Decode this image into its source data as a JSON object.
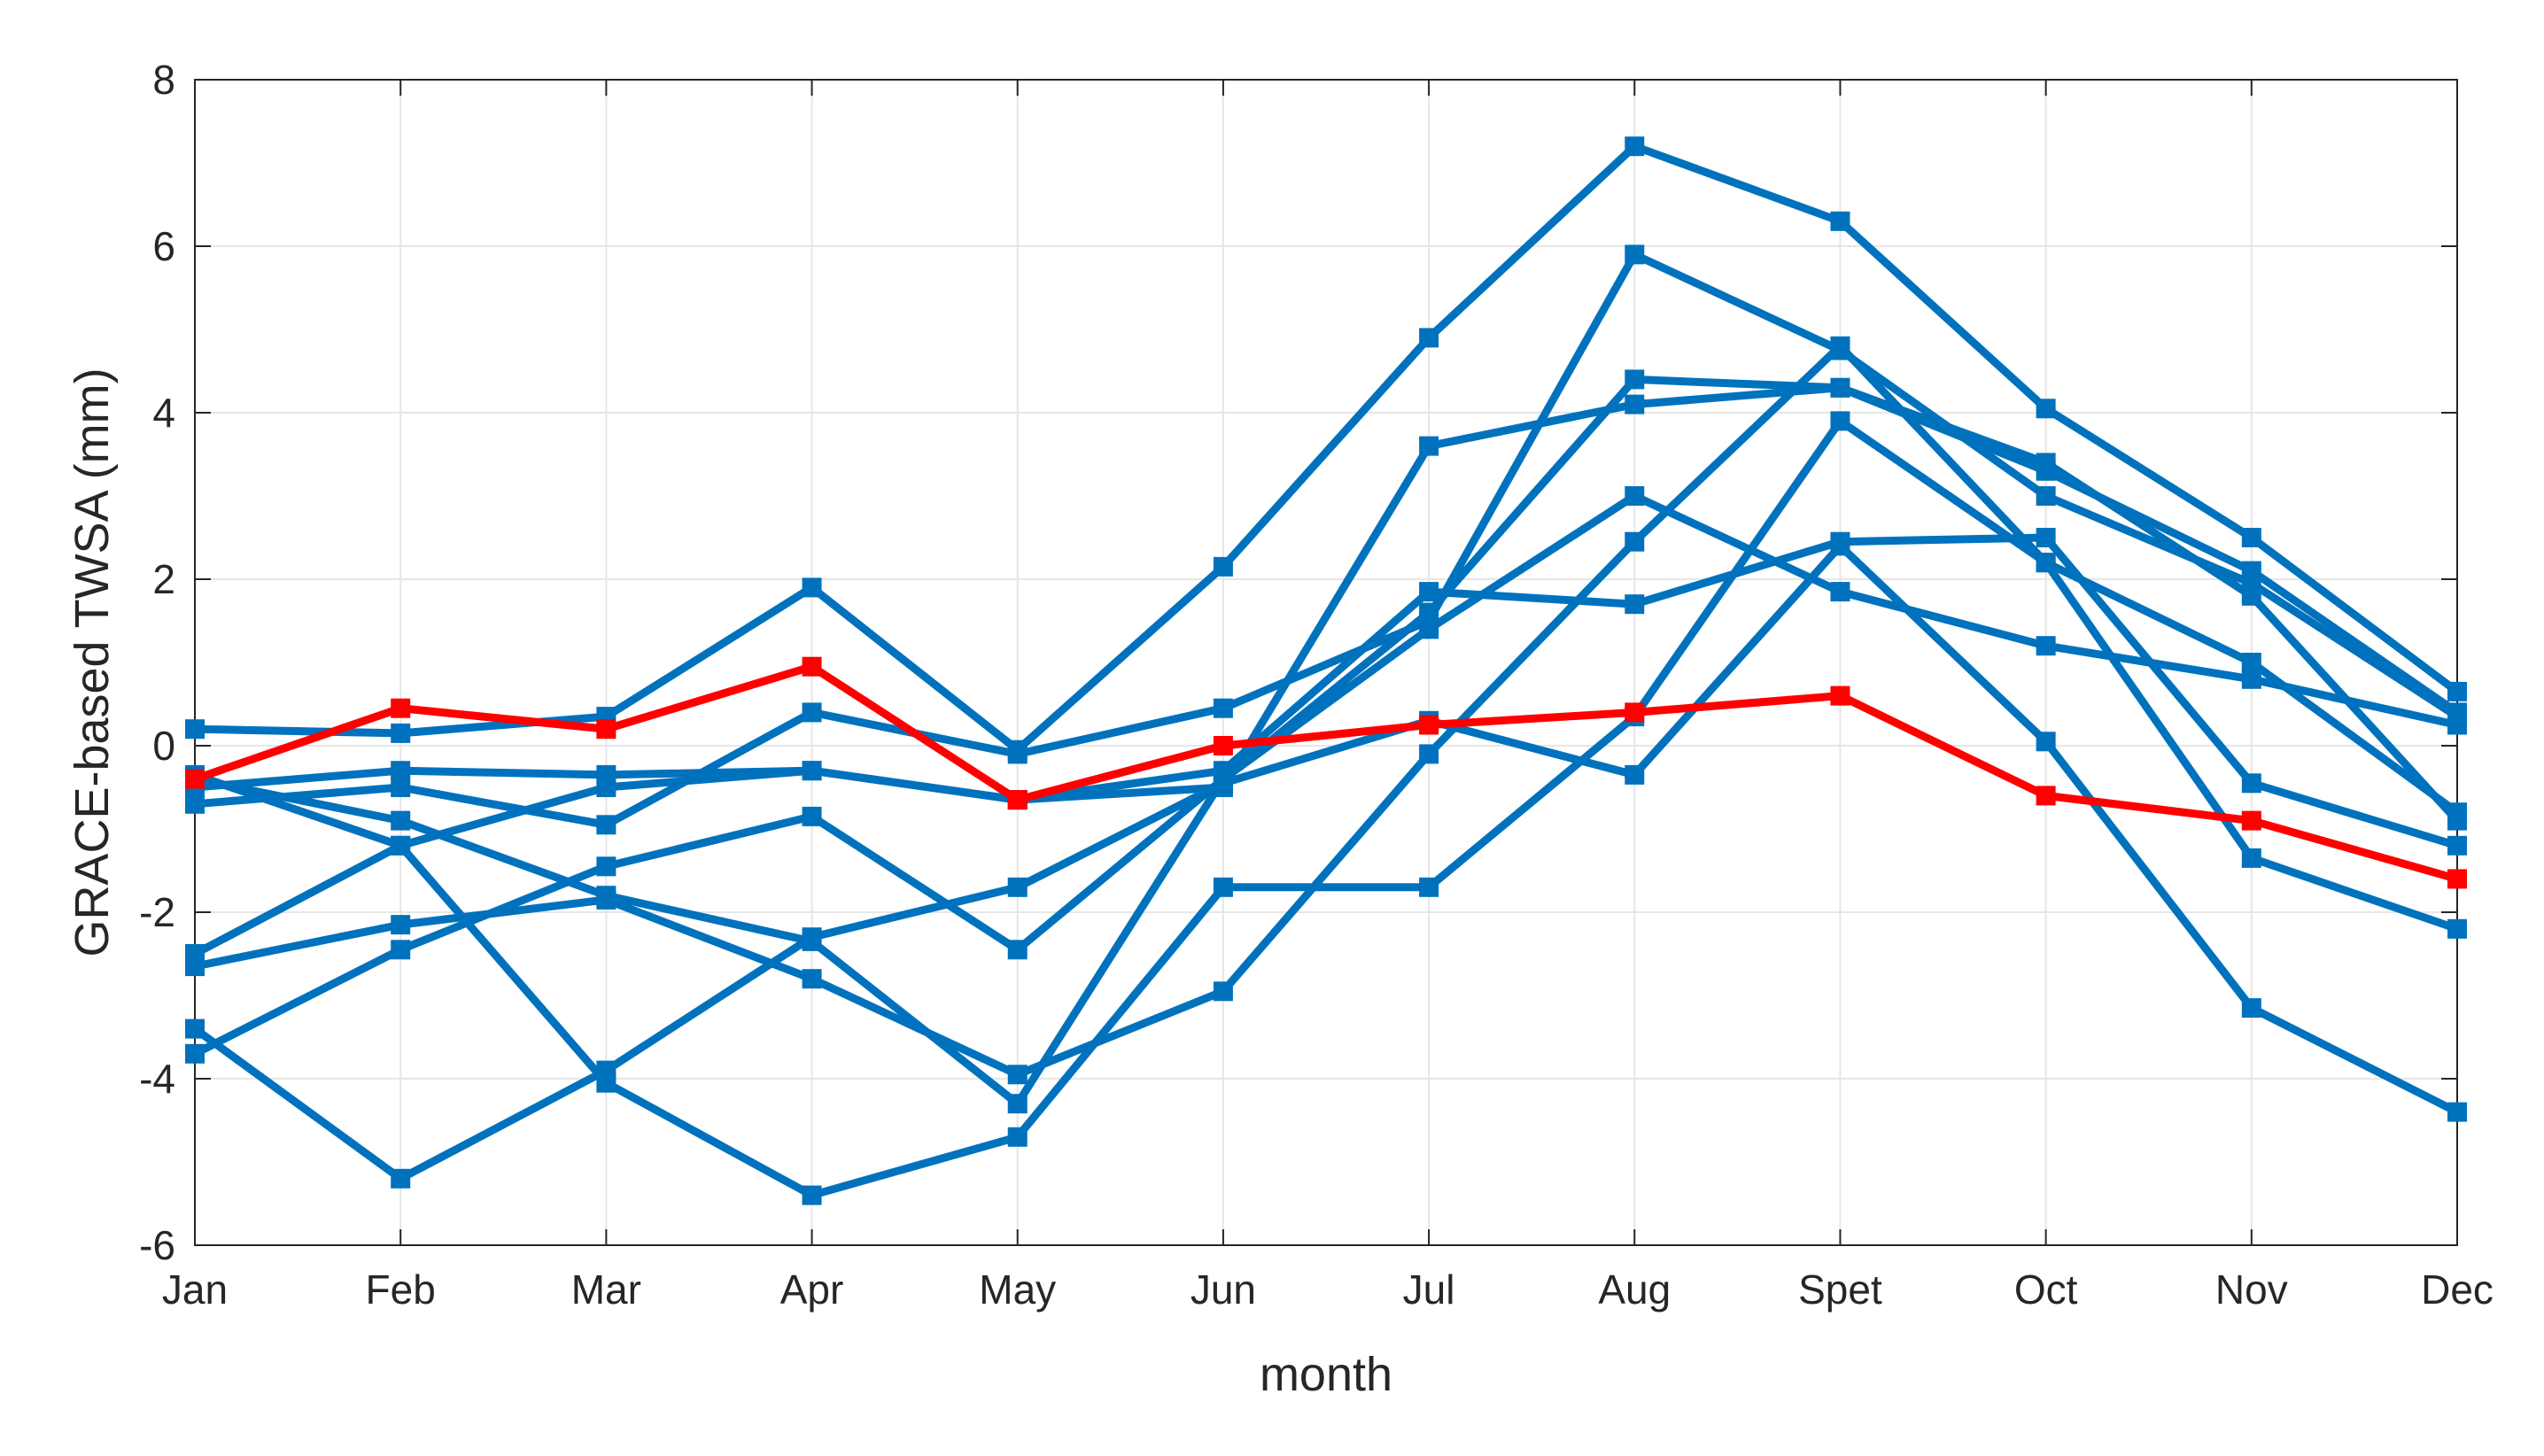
{
  "colors": {
    "blue": "#0072BD",
    "red": "#FF0000"
  },
  "chart_data": {
    "type": "line",
    "title": "",
    "xlabel": "month",
    "ylabel": "GRACE-based TWSA (mm)",
    "categories": [
      "Jan",
      "Feb",
      "Mar",
      "Apr",
      "May",
      "Jun",
      "Jul",
      "Aug",
      "Spet",
      "Oct",
      "Nov",
      "Dec"
    ],
    "ylim": [
      -6,
      8
    ],
    "yticks": [
      -6,
      -4,
      -2,
      0,
      2,
      4,
      6,
      8
    ],
    "grid": true,
    "marker": "square",
    "series": [
      {
        "color": "#0072BD",
        "values": [
          0.2,
          0.15,
          0.35,
          1.9,
          -0.05,
          2.15,
          4.9,
          7.2,
          6.3,
          4.05,
          2.5,
          0.65
        ]
      },
      {
        "color": "#0072BD",
        "values": [
          -2.5,
          -1.2,
          -0.5,
          -0.3,
          -0.65,
          -0.5,
          3.6,
          4.1,
          4.3,
          3.3,
          2.1,
          0.4
        ]
      },
      {
        "color": "#0072BD",
        "values": [
          -0.5,
          -0.3,
          -0.35,
          -0.3,
          -0.65,
          -0.3,
          1.85,
          1.7,
          2.45,
          2.5,
          -0.45,
          -1.2
        ]
      },
      {
        "color": "#0072BD",
        "values": [
          -0.4,
          -0.9,
          -1.8,
          -2.35,
          -4.3,
          -0.4,
          1.6,
          4.4,
          4.3,
          3.4,
          1.8,
          -0.9
        ]
      },
      {
        "color": "#0072BD",
        "values": [
          -0.7,
          -0.5,
          -0.95,
          0.4,
          -0.1,
          0.45,
          1.5,
          5.9,
          4.75,
          3.0,
          1.95,
          0.35
        ]
      },
      {
        "color": "#0072BD",
        "values": [
          -3.7,
          -2.45,
          -1.45,
          -0.85,
          -2.45,
          -0.4,
          1.4,
          3.0,
          1.85,
          1.2,
          0.8,
          0.25
        ]
      },
      {
        "color": "#0072BD",
        "values": [
          -2.65,
          -2.15,
          -1.85,
          -2.8,
          -3.95,
          -2.95,
          -0.1,
          2.45,
          4.8,
          2.2,
          -1.35,
          -2.2
        ]
      },
      {
        "color": "#0072BD",
        "values": [
          -3.4,
          -5.2,
          -3.9,
          -2.3,
          -1.7,
          -0.45,
          0.3,
          -0.35,
          2.4,
          0.05,
          -3.15,
          -4.4
        ]
      },
      {
        "color": "#0072BD",
        "values": [
          -0.35,
          -1.2,
          -4.05,
          -5.4,
          -4.7,
          -1.7,
          -1.7,
          0.35,
          3.9,
          2.2,
          1.0,
          -0.8
        ]
      },
      {
        "color": "#FF0000",
        "values": [
          -0.4,
          0.45,
          0.2,
          0.95,
          -0.65,
          0.0,
          0.25,
          0.4,
          0.6,
          -0.6,
          -0.9,
          -1.6
        ]
      }
    ]
  }
}
